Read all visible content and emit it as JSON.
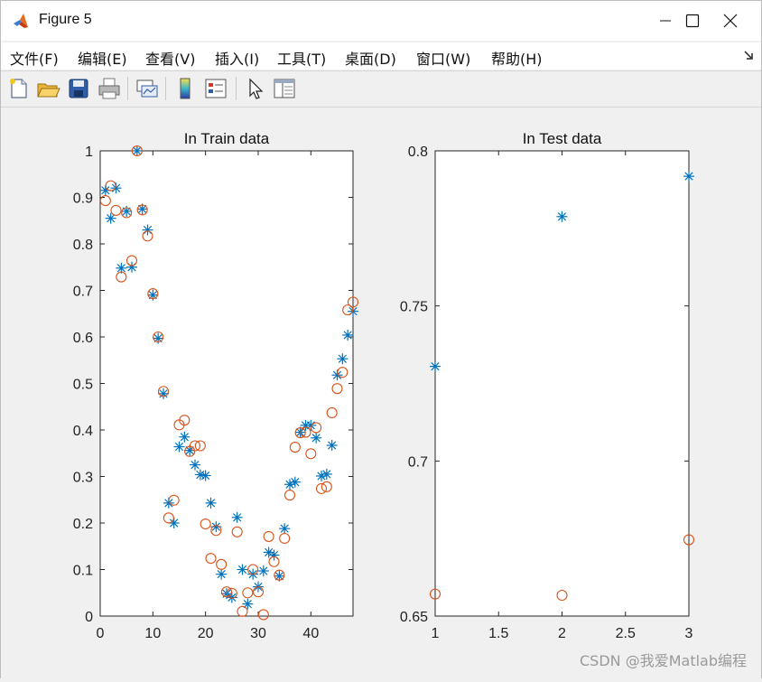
{
  "window": {
    "title": "Figure 5",
    "app_icon": "matlab-logo-icon",
    "controls": [
      "minimize-icon",
      "maximize-icon",
      "close-icon"
    ]
  },
  "menubar": {
    "items": [
      "文件(F)",
      "编辑(E)",
      "查看(V)",
      "插入(I)",
      "工具(T)",
      "桌面(D)",
      "窗口(W)",
      "帮助(H)"
    ],
    "dock_icon": "dock-arrow-icon"
  },
  "toolbar": {
    "icons": [
      "new-figure-icon",
      "open-file-icon",
      "save-icon",
      "print-icon",
      "link-plot-icon",
      "insert-colorbar-icon",
      "insert-legend-icon",
      "edit-plot-arrow-icon",
      "property-editor-icon"
    ]
  },
  "watermark": "CSDN @我爱Matlab编程",
  "chart_data": [
    {
      "type": "scatter",
      "title": "In Train data",
      "xlabel": "",
      "ylabel": "",
      "xlim": [
        0,
        48
      ],
      "ylim": [
        0,
        1
      ],
      "xticks": [
        0,
        10,
        20,
        30,
        40
      ],
      "yticks": [
        0,
        0.1,
        0.2,
        0.3,
        0.4,
        0.5,
        0.6,
        0.7,
        0.8,
        0.9,
        1
      ],
      "ytick_labels": [
        "0",
        "0.1",
        "0.2",
        "0.3",
        "0.4",
        "0.5",
        "0.6",
        "0.7",
        "0.8",
        "0.9",
        "1"
      ],
      "grid": false,
      "colors": {
        "asterisk": "#0072bd",
        "circle": "#d95319"
      },
      "series": [
        {
          "marker": "asterisk",
          "x": [
            1,
            2,
            3,
            4,
            5,
            6,
            7,
            8,
            9,
            10,
            11,
            12,
            13,
            14,
            15,
            16,
            17,
            18,
            19,
            20,
            21,
            22,
            23,
            24,
            25,
            26,
            27,
            28,
            29,
            30,
            31,
            32,
            33,
            34,
            35,
            36,
            37,
            38,
            39,
            40,
            41,
            42,
            43,
            44,
            45,
            46,
            47,
            48
          ],
          "y": [
            0.915,
            0.855,
            0.92,
            0.748,
            0.87,
            0.75,
            1.0,
            0.875,
            0.83,
            0.69,
            0.597,
            0.478,
            0.243,
            0.2,
            0.364,
            0.385,
            0.356,
            0.325,
            0.304,
            0.302,
            0.243,
            0.192,
            0.09,
            0.048,
            0.04,
            0.212,
            0.1,
            0.026,
            0.09,
            0.063,
            0.097,
            0.137,
            0.131,
            0.086,
            0.188,
            0.283,
            0.288,
            0.395,
            0.41,
            0.41,
            0.383,
            0.301,
            0.305,
            0.367,
            0.518,
            0.553,
            0.604,
            0.655
          ]
        },
        {
          "marker": "circle",
          "x": [
            1,
            2,
            3,
            4,
            5,
            6,
            7,
            8,
            9,
            10,
            11,
            12,
            13,
            14,
            15,
            16,
            17,
            18,
            19,
            20,
            21,
            22,
            23,
            24,
            25,
            26,
            27,
            28,
            29,
            30,
            31,
            32,
            33,
            34,
            35,
            36,
            37,
            38,
            39,
            40,
            41,
            42,
            43,
            44,
            45,
            46,
            47,
            48
          ],
          "y": [
            0.893,
            0.925,
            0.872,
            0.729,
            0.867,
            0.764,
            1.0,
            0.873,
            0.817,
            0.693,
            0.6,
            0.483,
            0.211,
            0.249,
            0.411,
            0.421,
            0.354,
            0.366,
            0.366,
            0.198,
            0.124,
            0.184,
            0.111,
            0.052,
            0.049,
            0.181,
            0.01,
            0.05,
            0.1,
            0.052,
            0.003,
            0.171,
            0.117,
            0.088,
            0.167,
            0.26,
            0.363,
            0.394,
            0.395,
            0.349,
            0.405,
            0.274,
            0.278,
            0.437,
            0.489,
            0.524,
            0.658,
            0.675
          ]
        }
      ]
    },
    {
      "type": "scatter",
      "title": "In Test data",
      "xlabel": "",
      "ylabel": "",
      "xlim": [
        1,
        3
      ],
      "ylim": [
        0.65,
        0.8
      ],
      "xticks": [
        1,
        1.5,
        2,
        2.5,
        3
      ],
      "xtick_labels": [
        "1",
        "1.5",
        "2",
        "2.5",
        "3"
      ],
      "yticks": [
        0.65,
        0.7,
        0.75,
        0.8
      ],
      "ytick_labels": [
        "0.65",
        "0.7",
        "0.75",
        "0.8"
      ],
      "grid": false,
      "colors": {
        "asterisk": "#0072bd",
        "circle": "#d95319"
      },
      "series": [
        {
          "marker": "asterisk",
          "x": [
            1,
            2,
            3
          ],
          "y": [
            0.7305,
            0.7788,
            0.7918
          ]
        },
        {
          "marker": "circle",
          "x": [
            1,
            2,
            3
          ],
          "y": [
            0.6571,
            0.6567,
            0.6746
          ]
        }
      ]
    }
  ]
}
